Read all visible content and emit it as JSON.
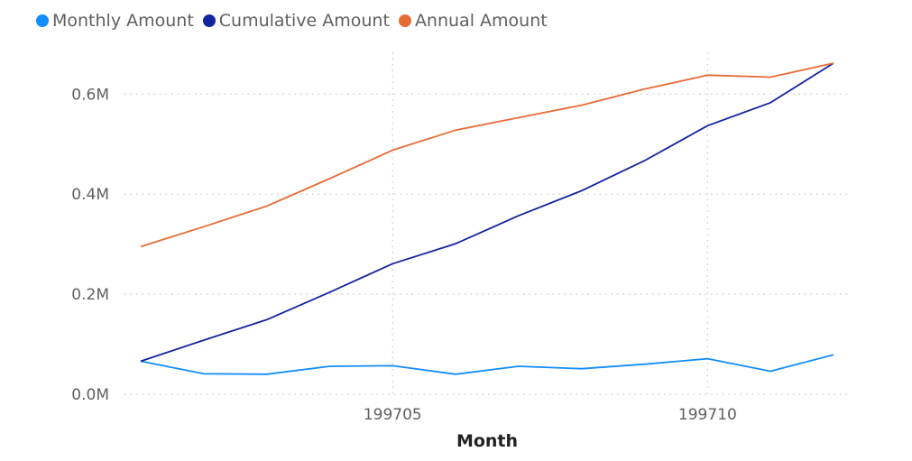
{
  "chart_data": {
    "type": "line",
    "title": "",
    "xlabel": "Month",
    "ylabel": "",
    "x": [
      199701,
      199702,
      199703,
      199704,
      199705,
      199706,
      199707,
      199708,
      199709,
      199710,
      199711,
      199712
    ],
    "x_ticks": [
      199705,
      199710
    ],
    "x_tick_labels": [
      "199705",
      "199710"
    ],
    "ylim": [
      0,
      680000
    ],
    "y_ticks": [
      0,
      200000,
      400000,
      600000
    ],
    "y_tick_labels": [
      "0.0M",
      "0.2M",
      "0.4M",
      "0.6M"
    ],
    "grid": true,
    "legend_position": "top-left",
    "series": [
      {
        "name": "Monthly Amount",
        "color": "#118DFF",
        "values": [
          66000,
          41000,
          40000,
          56000,
          57000,
          40000,
          56000,
          51000,
          60000,
          71000,
          46000,
          79000
        ]
      },
      {
        "name": "Cumulative Amount",
        "color": "#12239E",
        "values": [
          66000,
          108000,
          149000,
          204000,
          261000,
          301000,
          357000,
          407000,
          467000,
          537000,
          583000,
          662000
        ]
      },
      {
        "name": "Annual Amount",
        "color": "#E66C37",
        "values": [
          295000,
          335000,
          376000,
          431000,
          488000,
          528000,
          553000,
          578000,
          610000,
          638000,
          634000,
          662000
        ]
      }
    ]
  }
}
